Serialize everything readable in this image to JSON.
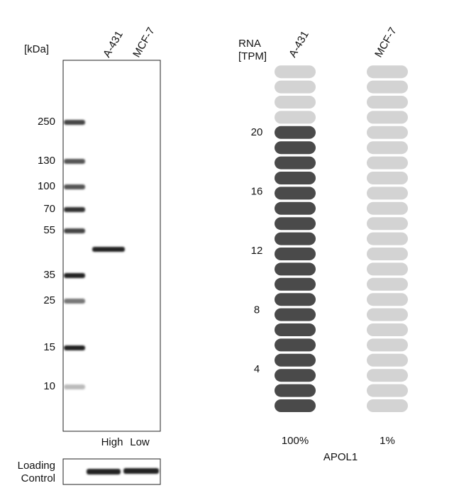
{
  "western_blot": {
    "unit_label": "[kDa]",
    "lanes": [
      "A-431",
      "MCF-7"
    ],
    "markers": [
      "250",
      "130",
      "100",
      "70",
      "55",
      "35",
      "25",
      "15",
      "10"
    ],
    "levels": [
      "High",
      "Low"
    ],
    "loading_control": [
      "Loading",
      "Control"
    ]
  },
  "rna": {
    "header": [
      "RNA",
      "[TPM]"
    ],
    "samples": [
      "A-431",
      "MCF-7"
    ],
    "values": [
      20,
      0.2
    ],
    "yticks": [
      4,
      8,
      12,
      16,
      20
    ],
    "percentages": [
      "100%",
      "1%"
    ],
    "gene": "APOL1"
  }
}
